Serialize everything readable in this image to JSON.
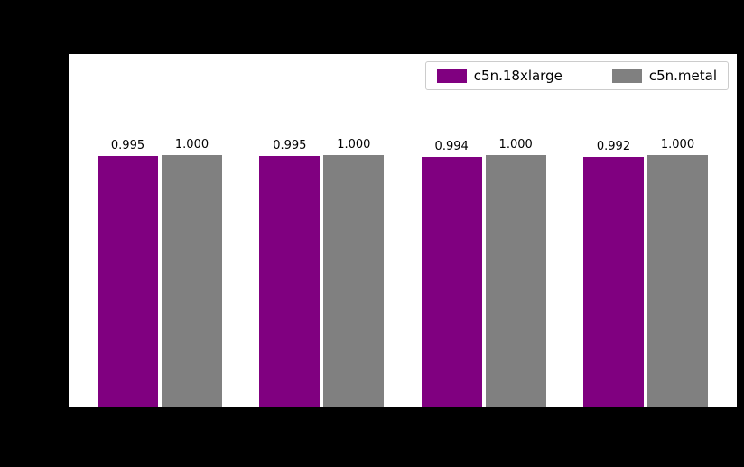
{
  "chart_data": {
    "type": "bar",
    "title": "",
    "categories": [
      "",
      "",
      "",
      ""
    ],
    "series": [
      {
        "name": "c5n.18xlarge",
        "color": "#800080",
        "values": [
          0.995,
          0.995,
          0.994,
          0.992
        ]
      },
      {
        "name": "c5n.metal",
        "color": "#808080",
        "values": [
          1.0,
          1.0,
          1.0,
          1.0
        ]
      }
    ],
    "ylim": [
      0,
      1.4
    ],
    "value_label_decimals": 3,
    "grid": false,
    "legend_position": "upper right",
    "plot_background": "#ffffff",
    "figure_background": "#000000"
  }
}
